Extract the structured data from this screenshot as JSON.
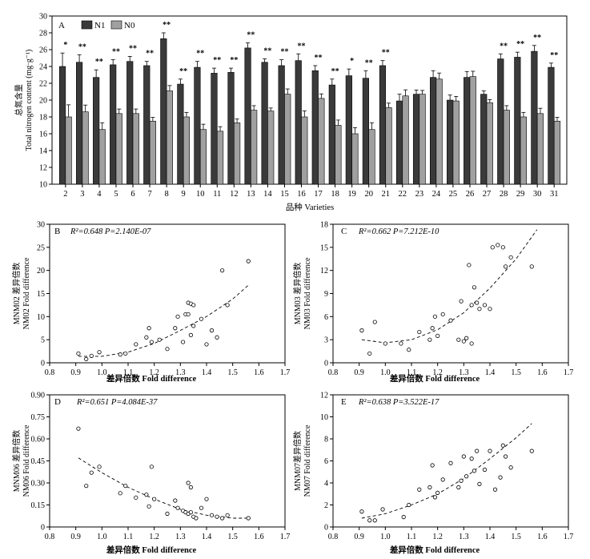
{
  "chart_data": [
    {
      "panel": "A",
      "type": "bar",
      "ylabel": "总氮含量 Total nitrogen content (mg·g⁻¹)",
      "ylabel_cn": "总氮含量",
      "ylabel_en": "Total nitrogen content (mg·g⁻¹)",
      "xlabel": "品种 Varieties",
      "ylim": [
        10,
        30
      ],
      "yticks": [
        10,
        12,
        14,
        16,
        18,
        20,
        22,
        24,
        26,
        28,
        30
      ],
      "categories": [
        "2",
        "3",
        "4",
        "5",
        "6",
        "7",
        "8",
        "9",
        "10",
        "11",
        "12",
        "13",
        "14",
        "15",
        "16",
        "17",
        "18",
        "19",
        "20",
        "21",
        "22",
        "23",
        "24",
        "25",
        "26",
        "27",
        "28",
        "29",
        "30",
        "31"
      ],
      "series": [
        {
          "name": "N1",
          "color": "#3a3a3a",
          "values": [
            24.0,
            24.5,
            22.7,
            24.2,
            24.6,
            24.1,
            27.3,
            21.9,
            23.9,
            23.2,
            23.3,
            26.2,
            24.5,
            24.1,
            24.7,
            23.5,
            21.8,
            22.9,
            22.6,
            24.1,
            19.9,
            20.7,
            22.7,
            20.0,
            22.7,
            20.7,
            24.9,
            25.1,
            25.8,
            23.9
          ],
          "errors": [
            1.6,
            0.9,
            0.9,
            0.6,
            0.6,
            0.5,
            0.7,
            0.6,
            0.7,
            0.6,
            0.5,
            0.6,
            0.4,
            0.7,
            0.8,
            0.6,
            0.7,
            0.8,
            0.9,
            0.6,
            0.8,
            0.5,
            0.8,
            0.6,
            0.7,
            0.4,
            0.6,
            0.6,
            0.7,
            0.5
          ]
        },
        {
          "name": "N0",
          "color": "#a0a0a0",
          "values": [
            18.0,
            18.6,
            16.5,
            18.4,
            18.4,
            17.5,
            21.1,
            18.0,
            16.5,
            16.3,
            17.3,
            18.8,
            18.7,
            20.7,
            18.0,
            20.2,
            17.0,
            16.0,
            16.5,
            19.1,
            20.5,
            20.7,
            22.5,
            19.9,
            22.8,
            19.7,
            18.8,
            18.0,
            18.4,
            17.5
          ]
        }
      ],
      "significance": [
        "*",
        "**",
        "**",
        "**",
        "**",
        "**",
        "**",
        "**",
        "**",
        "**",
        "**",
        "**",
        "**",
        "**",
        "**",
        "**",
        "**",
        "*",
        "**",
        "**",
        "",
        "",
        "",
        "",
        "",
        "",
        "**",
        "**",
        "**",
        "**"
      ],
      "legend": [
        "N1",
        "N0"
      ],
      "legend_position": "top-left"
    },
    {
      "panel": "B",
      "type": "scatter",
      "annotation": "R²=0.648 P=2.140E-07",
      "ylabel_cn": "MNM02 差异倍数",
      "ylabel_en": "NM02 Fold difference",
      "xlabel": "差异倍数 Fold difference",
      "xlim": [
        0.8,
        1.7
      ],
      "ylim": [
        0,
        30
      ],
      "xticks": [
        0.8,
        0.9,
        1.0,
        1.1,
        1.2,
        1.3,
        1.4,
        1.5,
        1.6,
        1.7
      ],
      "yticks": [
        0,
        5,
        10,
        15,
        20,
        25,
        30
      ],
      "points": [
        [
          0.91,
          2.0
        ],
        [
          0.94,
          0.8
        ],
        [
          0.96,
          1.5
        ],
        [
          0.99,
          2.3
        ],
        [
          1.07,
          1.8
        ],
        [
          1.09,
          2.0
        ],
        [
          1.13,
          4.0
        ],
        [
          1.17,
          5.5
        ],
        [
          1.18,
          7.5
        ],
        [
          1.19,
          4.5
        ],
        [
          1.22,
          5.0
        ],
        [
          1.25,
          3.0
        ],
        [
          1.28,
          7.5
        ],
        [
          1.29,
          10.0
        ],
        [
          1.31,
          4.5
        ],
        [
          1.32,
          10.5
        ],
        [
          1.33,
          13.0
        ],
        [
          1.33,
          10.5
        ],
        [
          1.34,
          12.8
        ],
        [
          1.35,
          12.5
        ],
        [
          1.38,
          9.5
        ],
        [
          1.4,
          4.0
        ],
        [
          1.42,
          7.0
        ],
        [
          1.44,
          5.5
        ],
        [
          1.46,
          20.0
        ],
        [
          1.48,
          12.5
        ],
        [
          1.56,
          22.0
        ],
        [
          1.34,
          6.0
        ],
        [
          1.35,
          8.0
        ]
      ],
      "trend": [
        [
          0.91,
          1.4
        ],
        [
          1.0,
          1.4
        ],
        [
          1.1,
          2.3
        ],
        [
          1.2,
          4.2
        ],
        [
          1.3,
          7.0
        ],
        [
          1.4,
          10.0
        ],
        [
          1.5,
          13.8
        ],
        [
          1.56,
          16.8
        ]
      ]
    },
    {
      "panel": "C",
      "type": "scatter",
      "annotation": "R²=0.662 P=7.212E-10",
      "ylabel_cn": "MNM03 差异倍数",
      "ylabel_en": "NM03 Fold difference",
      "xlabel": "差异倍数 Fold difference",
      "xlim": [
        0.8,
        1.7
      ],
      "ylim": [
        0,
        18
      ],
      "xticks": [
        0.8,
        0.9,
        1.0,
        1.1,
        1.2,
        1.3,
        1.4,
        1.5,
        1.6,
        1.7
      ],
      "yticks": [
        0,
        3,
        6,
        9,
        12,
        15,
        18
      ],
      "points": [
        [
          0.91,
          4.2
        ],
        [
          0.94,
          1.2
        ],
        [
          0.96,
          5.3
        ],
        [
          1.0,
          2.5
        ],
        [
          1.06,
          2.5
        ],
        [
          1.09,
          1.7
        ],
        [
          1.13,
          4.0
        ],
        [
          1.17,
          3.0
        ],
        [
          1.18,
          4.5
        ],
        [
          1.19,
          6.0
        ],
        [
          1.2,
          3.5
        ],
        [
          1.22,
          6.3
        ],
        [
          1.25,
          5.5
        ],
        [
          1.28,
          3.0
        ],
        [
          1.29,
          8.0
        ],
        [
          1.3,
          2.8
        ],
        [
          1.31,
          3.2
        ],
        [
          1.32,
          12.7
        ],
        [
          1.33,
          7.5
        ],
        [
          1.34,
          9.8
        ],
        [
          1.35,
          7.8
        ],
        [
          1.36,
          7.0
        ],
        [
          1.38,
          7.5
        ],
        [
          1.4,
          7.0
        ],
        [
          1.41,
          15.0
        ],
        [
          1.43,
          15.3
        ],
        [
          1.45,
          15.0
        ],
        [
          1.46,
          12.5
        ],
        [
          1.48,
          13.7
        ],
        [
          1.56,
          12.5
        ],
        [
          1.33,
          2.5
        ]
      ],
      "trend": [
        [
          0.91,
          3.0
        ],
        [
          1.0,
          2.6
        ],
        [
          1.1,
          3.0
        ],
        [
          1.2,
          4.3
        ],
        [
          1.3,
          6.5
        ],
        [
          1.4,
          9.7
        ],
        [
          1.5,
          13.5
        ],
        [
          1.58,
          17.3
        ]
      ]
    },
    {
      "panel": "D",
      "type": "scatter",
      "annotation": "R²=0.651 P=4.084E-37",
      "ylabel_cn": "MNM06 差异倍数",
      "ylabel_en": "NM06 Fold difference",
      "xlabel": "差异倍数 Fold difference",
      "xlim": [
        0.8,
        1.7
      ],
      "ylim": [
        0,
        0.9
      ],
      "xticks": [
        0.8,
        0.9,
        1.0,
        1.1,
        1.2,
        1.3,
        1.4,
        1.5,
        1.6,
        1.7
      ],
      "yticks": [
        0,
        0.15,
        0.3,
        0.45,
        0.6,
        0.75,
        0.9
      ],
      "ytick_labels": [
        "0",
        "0.15",
        "0.30",
        "0.45",
        "0.60",
        "0.75",
        "0.90"
      ],
      "points": [
        [
          0.91,
          0.67
        ],
        [
          0.94,
          0.28
        ],
        [
          0.96,
          0.37
        ],
        [
          0.99,
          0.41
        ],
        [
          1.07,
          0.23
        ],
        [
          1.09,
          0.28
        ],
        [
          1.13,
          0.2
        ],
        [
          1.17,
          0.22
        ],
        [
          1.18,
          0.14
        ],
        [
          1.19,
          0.41
        ],
        [
          1.2,
          0.19
        ],
        [
          1.25,
          0.09
        ],
        [
          1.28,
          0.18
        ],
        [
          1.29,
          0.13
        ],
        [
          1.31,
          0.11
        ],
        [
          1.32,
          0.1
        ],
        [
          1.33,
          0.3
        ],
        [
          1.33,
          0.09
        ],
        [
          1.34,
          0.27
        ],
        [
          1.35,
          0.07
        ],
        [
          1.36,
          0.06
        ],
        [
          1.38,
          0.13
        ],
        [
          1.4,
          0.19
        ],
        [
          1.42,
          0.08
        ],
        [
          1.44,
          0.07
        ],
        [
          1.46,
          0.06
        ],
        [
          1.48,
          0.08
        ],
        [
          1.56,
          0.06
        ],
        [
          1.34,
          0.1
        ]
      ],
      "trend": [
        [
          0.91,
          0.47
        ],
        [
          1.0,
          0.37
        ],
        [
          1.1,
          0.27
        ],
        [
          1.2,
          0.19
        ],
        [
          1.3,
          0.12
        ],
        [
          1.4,
          0.08
        ],
        [
          1.5,
          0.06
        ],
        [
          1.56,
          0.06
        ]
      ]
    },
    {
      "panel": "E",
      "type": "scatter",
      "annotation": "R²=0.638 P=3.522E-17",
      "ylabel_cn": "MNM07差异倍数",
      "ylabel_en": "NM07 Fold difference",
      "xlabel": "差异倍数 Fold difference",
      "xlim": [
        0.8,
        1.7
      ],
      "ylim": [
        0,
        12
      ],
      "xticks": [
        0.8,
        0.9,
        1.0,
        1.1,
        1.2,
        1.3,
        1.4,
        1.5,
        1.6,
        1.7
      ],
      "yticks": [
        0,
        2,
        4,
        6,
        8,
        10,
        12
      ],
      "points": [
        [
          0.91,
          1.4
        ],
        [
          0.94,
          0.6
        ],
        [
          0.96,
          0.6
        ],
        [
          0.99,
          1.6
        ],
        [
          1.07,
          0.9
        ],
        [
          1.09,
          2.0
        ],
        [
          1.13,
          3.4
        ],
        [
          1.17,
          3.6
        ],
        [
          1.18,
          5.6
        ],
        [
          1.19,
          2.7
        ],
        [
          1.2,
          3.1
        ],
        [
          1.22,
          4.3
        ],
        [
          1.25,
          5.8
        ],
        [
          1.28,
          3.6
        ],
        [
          1.29,
          4.2
        ],
        [
          1.3,
          6.4
        ],
        [
          1.31,
          4.6
        ],
        [
          1.33,
          6.2
        ],
        [
          1.34,
          5.1
        ],
        [
          1.35,
          6.9
        ],
        [
          1.36,
          3.9
        ],
        [
          1.38,
          5.2
        ],
        [
          1.4,
          6.9
        ],
        [
          1.42,
          3.4
        ],
        [
          1.44,
          4.5
        ],
        [
          1.45,
          7.4
        ],
        [
          1.46,
          6.4
        ],
        [
          1.48,
          5.4
        ],
        [
          1.56,
          6.9
        ]
      ],
      "trend": [
        [
          0.91,
          0.8
        ],
        [
          1.0,
          1.2
        ],
        [
          1.1,
          2.0
        ],
        [
          1.2,
          3.0
        ],
        [
          1.3,
          4.4
        ],
        [
          1.4,
          6.2
        ],
        [
          1.5,
          8.1
        ],
        [
          1.56,
          9.4
        ]
      ]
    }
  ]
}
